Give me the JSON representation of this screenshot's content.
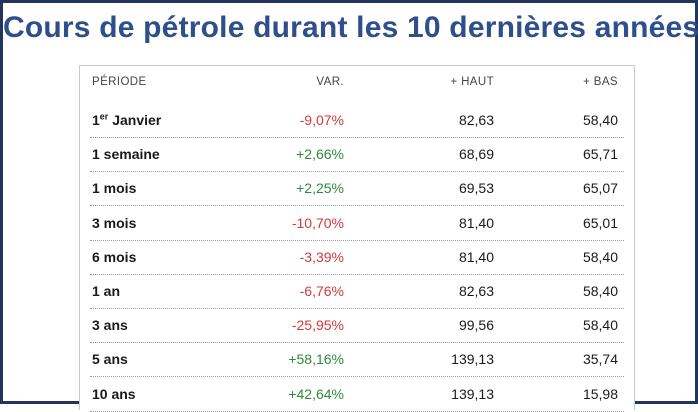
{
  "title": "Cours de pétrole durant les 10 dernières années",
  "columns": {
    "period": "PÉRIODE",
    "var": "VAR.",
    "high": "+ HAUT",
    "low": "+ BAS"
  },
  "rows": [
    {
      "period_main": "1",
      "period_sup": "er",
      "period_rest": " Janvier",
      "var": "-9,07%",
      "trend": "neg",
      "high": "82,63",
      "low": "58,40"
    },
    {
      "period_main": "1 semaine",
      "period_sup": "",
      "period_rest": "",
      "var": "+2,66%",
      "trend": "pos",
      "high": "68,69",
      "low": "65,71"
    },
    {
      "period_main": "1 mois",
      "period_sup": "",
      "period_rest": "",
      "var": "+2,25%",
      "trend": "pos",
      "high": "69,53",
      "low": "65,07"
    },
    {
      "period_main": "3 mois",
      "period_sup": "",
      "period_rest": "",
      "var": "-10,70%",
      "trend": "neg",
      "high": "81,40",
      "low": "65,01"
    },
    {
      "period_main": "6 mois",
      "period_sup": "",
      "period_rest": "",
      "var": "-3,39%",
      "trend": "neg",
      "high": "81,40",
      "low": "58,40"
    },
    {
      "period_main": "1 an",
      "period_sup": "",
      "period_rest": "",
      "var": "-6,76%",
      "trend": "neg",
      "high": "82,63",
      "low": "58,40"
    },
    {
      "period_main": "3 ans",
      "period_sup": "",
      "period_rest": "",
      "var": "-25,95%",
      "trend": "neg",
      "high": "99,56",
      "low": "58,40"
    },
    {
      "period_main": "5 ans",
      "period_sup": "",
      "period_rest": "",
      "var": "+58,16%",
      "trend": "pos",
      "high": "139,13",
      "low": "35,74"
    },
    {
      "period_main": "10 ans",
      "period_sup": "",
      "period_rest": "",
      "var": "+42,64%",
      "trend": "pos",
      "high": "139,13",
      "low": "15,98"
    }
  ],
  "colors": {
    "title": "#2e4f8c",
    "frame": "#23345f",
    "negative": "#d23a3a",
    "positive": "#2f8a3a"
  }
}
